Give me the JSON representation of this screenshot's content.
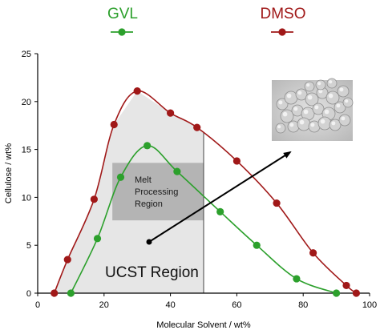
{
  "chart_data": {
    "type": "line",
    "xlabel": "Molecular Solvent / wt%",
    "ylabel": "Cellulose / wt%",
    "xlim": [
      0,
      100
    ],
    "ylim": [
      0,
      25
    ],
    "xticks": [
      "0",
      "20",
      "40",
      "60",
      "80",
      "100"
    ],
    "yticks": [
      "0",
      "5",
      "10",
      "15",
      "20",
      "25"
    ],
    "legend_position": "top",
    "series": [
      {
        "name": "GVL",
        "color": "#2ca02c",
        "x": [
          10,
          18,
          25,
          33,
          42,
          55,
          66,
          78,
          90
        ],
        "y": [
          0,
          5.7,
          12.1,
          15.4,
          12.7,
          8.5,
          5.0,
          1.5,
          0
        ]
      },
      {
        "name": "DMSO",
        "color": "#a01818",
        "x": [
          5,
          9,
          17,
          23,
          30,
          40,
          48,
          60,
          72,
          83,
          93,
          96
        ],
        "y": [
          0,
          3.5,
          9.8,
          17.6,
          21.1,
          18.8,
          17.3,
          13.8,
          9.4,
          4.2,
          0.8,
          0
        ]
      }
    ],
    "annotations": {
      "melt_region": "Melt\nProcessing\nRegion",
      "ucst_region": "UCST Region"
    }
  }
}
